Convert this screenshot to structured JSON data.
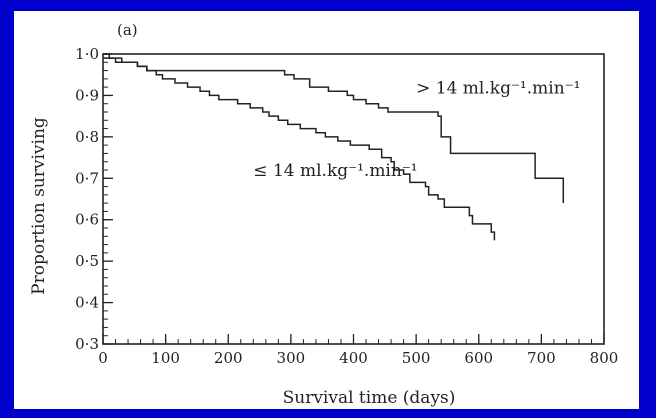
{
  "chart_data": {
    "type": "line",
    "panel_label": "(a)",
    "xlabel": "Survival time (days)",
    "ylabel": "Proportion surviving",
    "xlim": [
      0,
      800
    ],
    "ylim": [
      0.3,
      1.0
    ],
    "x_ticks": [
      0,
      100,
      200,
      300,
      400,
      500,
      600,
      700,
      800
    ],
    "x_tick_labels": [
      "0",
      "100",
      "200",
      "300",
      "400",
      "500",
      "600",
      "700",
      "800"
    ],
    "y_ticks": [
      0.3,
      0.4,
      0.5,
      0.6,
      0.7,
      0.8,
      0.9,
      1.0
    ],
    "y_tick_labels": [
      "0·3",
      "0·4",
      "0·5",
      "0·6",
      "0·7",
      "0·8",
      "0·9",
      "1·0"
    ],
    "grid": false,
    "series": [
      {
        "name": "> 14 ml.kg⁻¹.min⁻¹",
        "step": true,
        "points": [
          [
            0,
            0.99
          ],
          [
            20,
            0.98
          ],
          [
            55,
            0.97
          ],
          [
            70,
            0.96
          ],
          [
            200,
            0.96
          ],
          [
            285,
            0.96
          ],
          [
            290,
            0.95
          ],
          [
            305,
            0.94
          ],
          [
            330,
            0.92
          ],
          [
            360,
            0.91
          ],
          [
            390,
            0.9
          ],
          [
            400,
            0.89
          ],
          [
            420,
            0.88
          ],
          [
            440,
            0.87
          ],
          [
            455,
            0.86
          ],
          [
            535,
            0.85
          ],
          [
            540,
            0.8
          ],
          [
            555,
            0.76
          ],
          [
            685,
            0.76
          ],
          [
            690,
            0.7
          ],
          [
            730,
            0.7
          ],
          [
            735,
            0.64
          ]
        ]
      },
      {
        "name": "≤ 14 ml.kg⁻¹.min⁻¹",
        "step": true,
        "points": [
          [
            0,
            1.0
          ],
          [
            10,
            0.99
          ],
          [
            30,
            0.98
          ],
          [
            55,
            0.97
          ],
          [
            70,
            0.96
          ],
          [
            85,
            0.95
          ],
          [
            95,
            0.94
          ],
          [
            115,
            0.93
          ],
          [
            135,
            0.92
          ],
          [
            155,
            0.91
          ],
          [
            170,
            0.9
          ],
          [
            185,
            0.89
          ],
          [
            215,
            0.88
          ],
          [
            235,
            0.87
          ],
          [
            255,
            0.86
          ],
          [
            265,
            0.85
          ],
          [
            280,
            0.84
          ],
          [
            295,
            0.83
          ],
          [
            315,
            0.82
          ],
          [
            340,
            0.81
          ],
          [
            355,
            0.8
          ],
          [
            375,
            0.79
          ],
          [
            395,
            0.78
          ],
          [
            425,
            0.77
          ],
          [
            445,
            0.75
          ],
          [
            460,
            0.74
          ],
          [
            465,
            0.72
          ],
          [
            480,
            0.71
          ],
          [
            490,
            0.69
          ],
          [
            515,
            0.68
          ],
          [
            520,
            0.66
          ],
          [
            535,
            0.65
          ],
          [
            545,
            0.63
          ],
          [
            580,
            0.63
          ],
          [
            585,
            0.61
          ],
          [
            590,
            0.59
          ],
          [
            615,
            0.59
          ],
          [
            620,
            0.57
          ],
          [
            625,
            0.55
          ]
        ]
      }
    ],
    "annotations": [
      {
        "series": 0,
        "text": "> 14 ml.kg⁻¹.min⁻¹",
        "at": [
          500,
          0.905
        ]
      },
      {
        "series": 1,
        "text": "≤ 14 ml.kg⁻¹.min⁻¹",
        "at": [
          240,
          0.705
        ]
      }
    ],
    "line_color": "#222222"
  }
}
